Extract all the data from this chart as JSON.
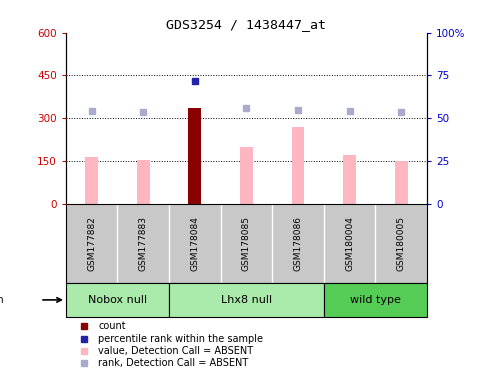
{
  "title": "GDS3254 / 1438447_at",
  "samples": [
    "GSM177882",
    "GSM177883",
    "GSM178084",
    "GSM178085",
    "GSM178086",
    "GSM180004",
    "GSM180005"
  ],
  "values": [
    165,
    152,
    335,
    198,
    270,
    170,
    150
  ],
  "ranks_left": [
    325,
    322,
    430,
    335,
    330,
    325,
    320
  ],
  "count_sample_index": 2,
  "count_color": "#8B0000",
  "value_color": "#FFB6C1",
  "rank_color": "#AAAACC",
  "blue_rank_color": "#2222AA",
  "ylim_left": [
    0,
    600
  ],
  "ylim_right": [
    0,
    100
  ],
  "yticks_left": [
    0,
    150,
    300,
    450,
    600
  ],
  "yticks_right": [
    0,
    25,
    50,
    75,
    100
  ],
  "ytick_labels_left": [
    "0",
    "150",
    "300",
    "450",
    "600"
  ],
  "ytick_labels_right": [
    "0",
    "25",
    "50",
    "75",
    "100%"
  ],
  "group_configs": [
    {
      "start": 0,
      "end": 1,
      "label": "Nobox null",
      "color": "#AAEAAA"
    },
    {
      "start": 2,
      "end": 4,
      "label": "Lhx8 null",
      "color": "#AAEAAA"
    },
    {
      "start": 5,
      "end": 6,
      "label": "wild type",
      "color": "#55CC55"
    }
  ],
  "sample_box_color": "#C8C8C8",
  "background_color": "#ffffff",
  "plot_bg": "#ffffff",
  "tick_color_left": "#CC0000",
  "tick_color_right": "#0000CC",
  "legend_items": [
    {
      "label": "count",
      "color": "#8B0000"
    },
    {
      "label": "percentile rank within the sample",
      "color": "#2222AA"
    },
    {
      "label": "value, Detection Call = ABSENT",
      "color": "#FFB6C1"
    },
    {
      "label": "rank, Detection Call = ABSENT",
      "color": "#AAAACC"
    }
  ]
}
